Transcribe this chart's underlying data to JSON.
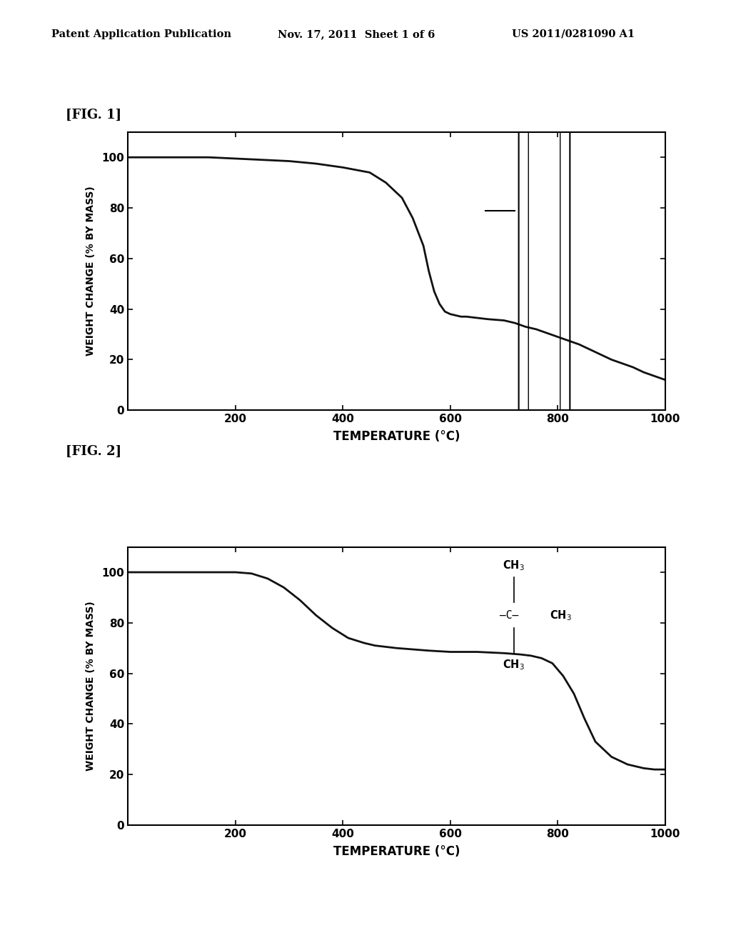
{
  "header_left": "Patent Application Publication",
  "header_center": "Nov. 17, 2011  Sheet 1 of 6",
  "header_right": "US 2011/0281090 A1",
  "fig1_label": "[FIG. 1]",
  "fig2_label": "[FIG. 2]",
  "ylabel": "WEIGHT CHANGE (% BY MASS)",
  "xlabel": "TEMPERATURE (°C)",
  "fig1": {
    "x": [
      0,
      50,
      100,
      150,
      200,
      250,
      300,
      350,
      400,
      450,
      480,
      510,
      530,
      550,
      560,
      570,
      580,
      590,
      600,
      610,
      620,
      630,
      650,
      670,
      700,
      720,
      740,
      760,
      780,
      800,
      820,
      840,
      860,
      880,
      900,
      920,
      940,
      960,
      980,
      1000
    ],
    "y": [
      100,
      100,
      100,
      100,
      99.5,
      99,
      98.5,
      97.5,
      96,
      94,
      90,
      84,
      76,
      65,
      55,
      47,
      42,
      39,
      38,
      37.5,
      37,
      37,
      36.5,
      36,
      35.5,
      34.5,
      33,
      32,
      30.5,
      29,
      27.5,
      26,
      24,
      22,
      20,
      18.5,
      17,
      15,
      13.5,
      12
    ],
    "xlim": [
      0,
      1000
    ],
    "ylim": [
      0,
      110
    ],
    "xticks": [
      200,
      400,
      600,
      800,
      1000
    ],
    "yticks": [
      0,
      20,
      40,
      60,
      80,
      100
    ]
  },
  "fig2": {
    "x": [
      0,
      50,
      100,
      150,
      200,
      230,
      260,
      290,
      320,
      350,
      380,
      410,
      440,
      460,
      480,
      500,
      530,
      560,
      600,
      650,
      700,
      730,
      750,
      770,
      790,
      810,
      830,
      850,
      870,
      900,
      930,
      960,
      980,
      1000
    ],
    "y": [
      100,
      100,
      100,
      100,
      100,
      99.5,
      97.5,
      94,
      89,
      83,
      78,
      74,
      72,
      71,
      70.5,
      70,
      69.5,
      69,
      68.5,
      68.5,
      68,
      67.5,
      67,
      66,
      64,
      59,
      52,
      42,
      33,
      27,
      24,
      22.5,
      22,
      22
    ],
    "xlim": [
      0,
      1000
    ],
    "ylim": [
      0,
      110
    ],
    "xticks": [
      200,
      400,
      600,
      800,
      1000
    ],
    "yticks": [
      0,
      20,
      40,
      60,
      80,
      100
    ]
  },
  "bg_color": "#ffffff",
  "line_color": "#111111",
  "axis_color": "#000000",
  "text_color": "#000000"
}
